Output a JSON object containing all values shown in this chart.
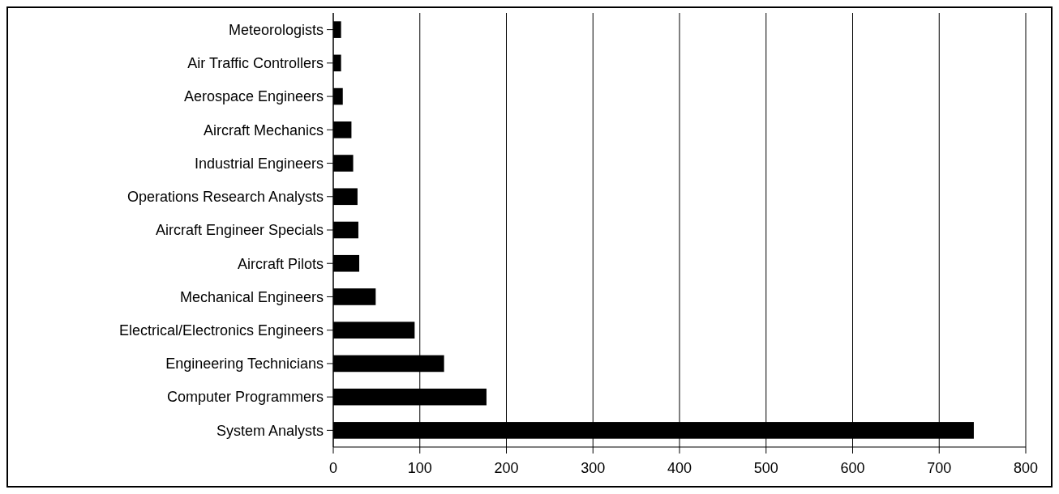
{
  "chart_data": {
    "type": "bar",
    "orientation": "horizontal",
    "categories": [
      "Meteorologists",
      "Air Traffic Controllers",
      "Aerospace Engineers",
      "Aircraft Mechanics",
      "Industrial Engineers",
      "Operations Research Analysts",
      "Aircraft Engineer Specials",
      "Aircraft Pilots",
      "Mechanical Engineers",
      "Electrical/Electronics Engineers",
      "Engineering Technicians",
      "Computer Programmers",
      "System Analysts"
    ],
    "values": [
      9,
      9,
      11,
      21,
      23,
      28,
      29,
      30,
      49,
      94,
      128,
      177,
      740
    ],
    "color": "#000000",
    "xlim": [
      0,
      800
    ],
    "xticks": [
      0,
      100,
      200,
      300,
      400,
      500,
      600,
      700,
      800
    ],
    "grid": "x"
  }
}
